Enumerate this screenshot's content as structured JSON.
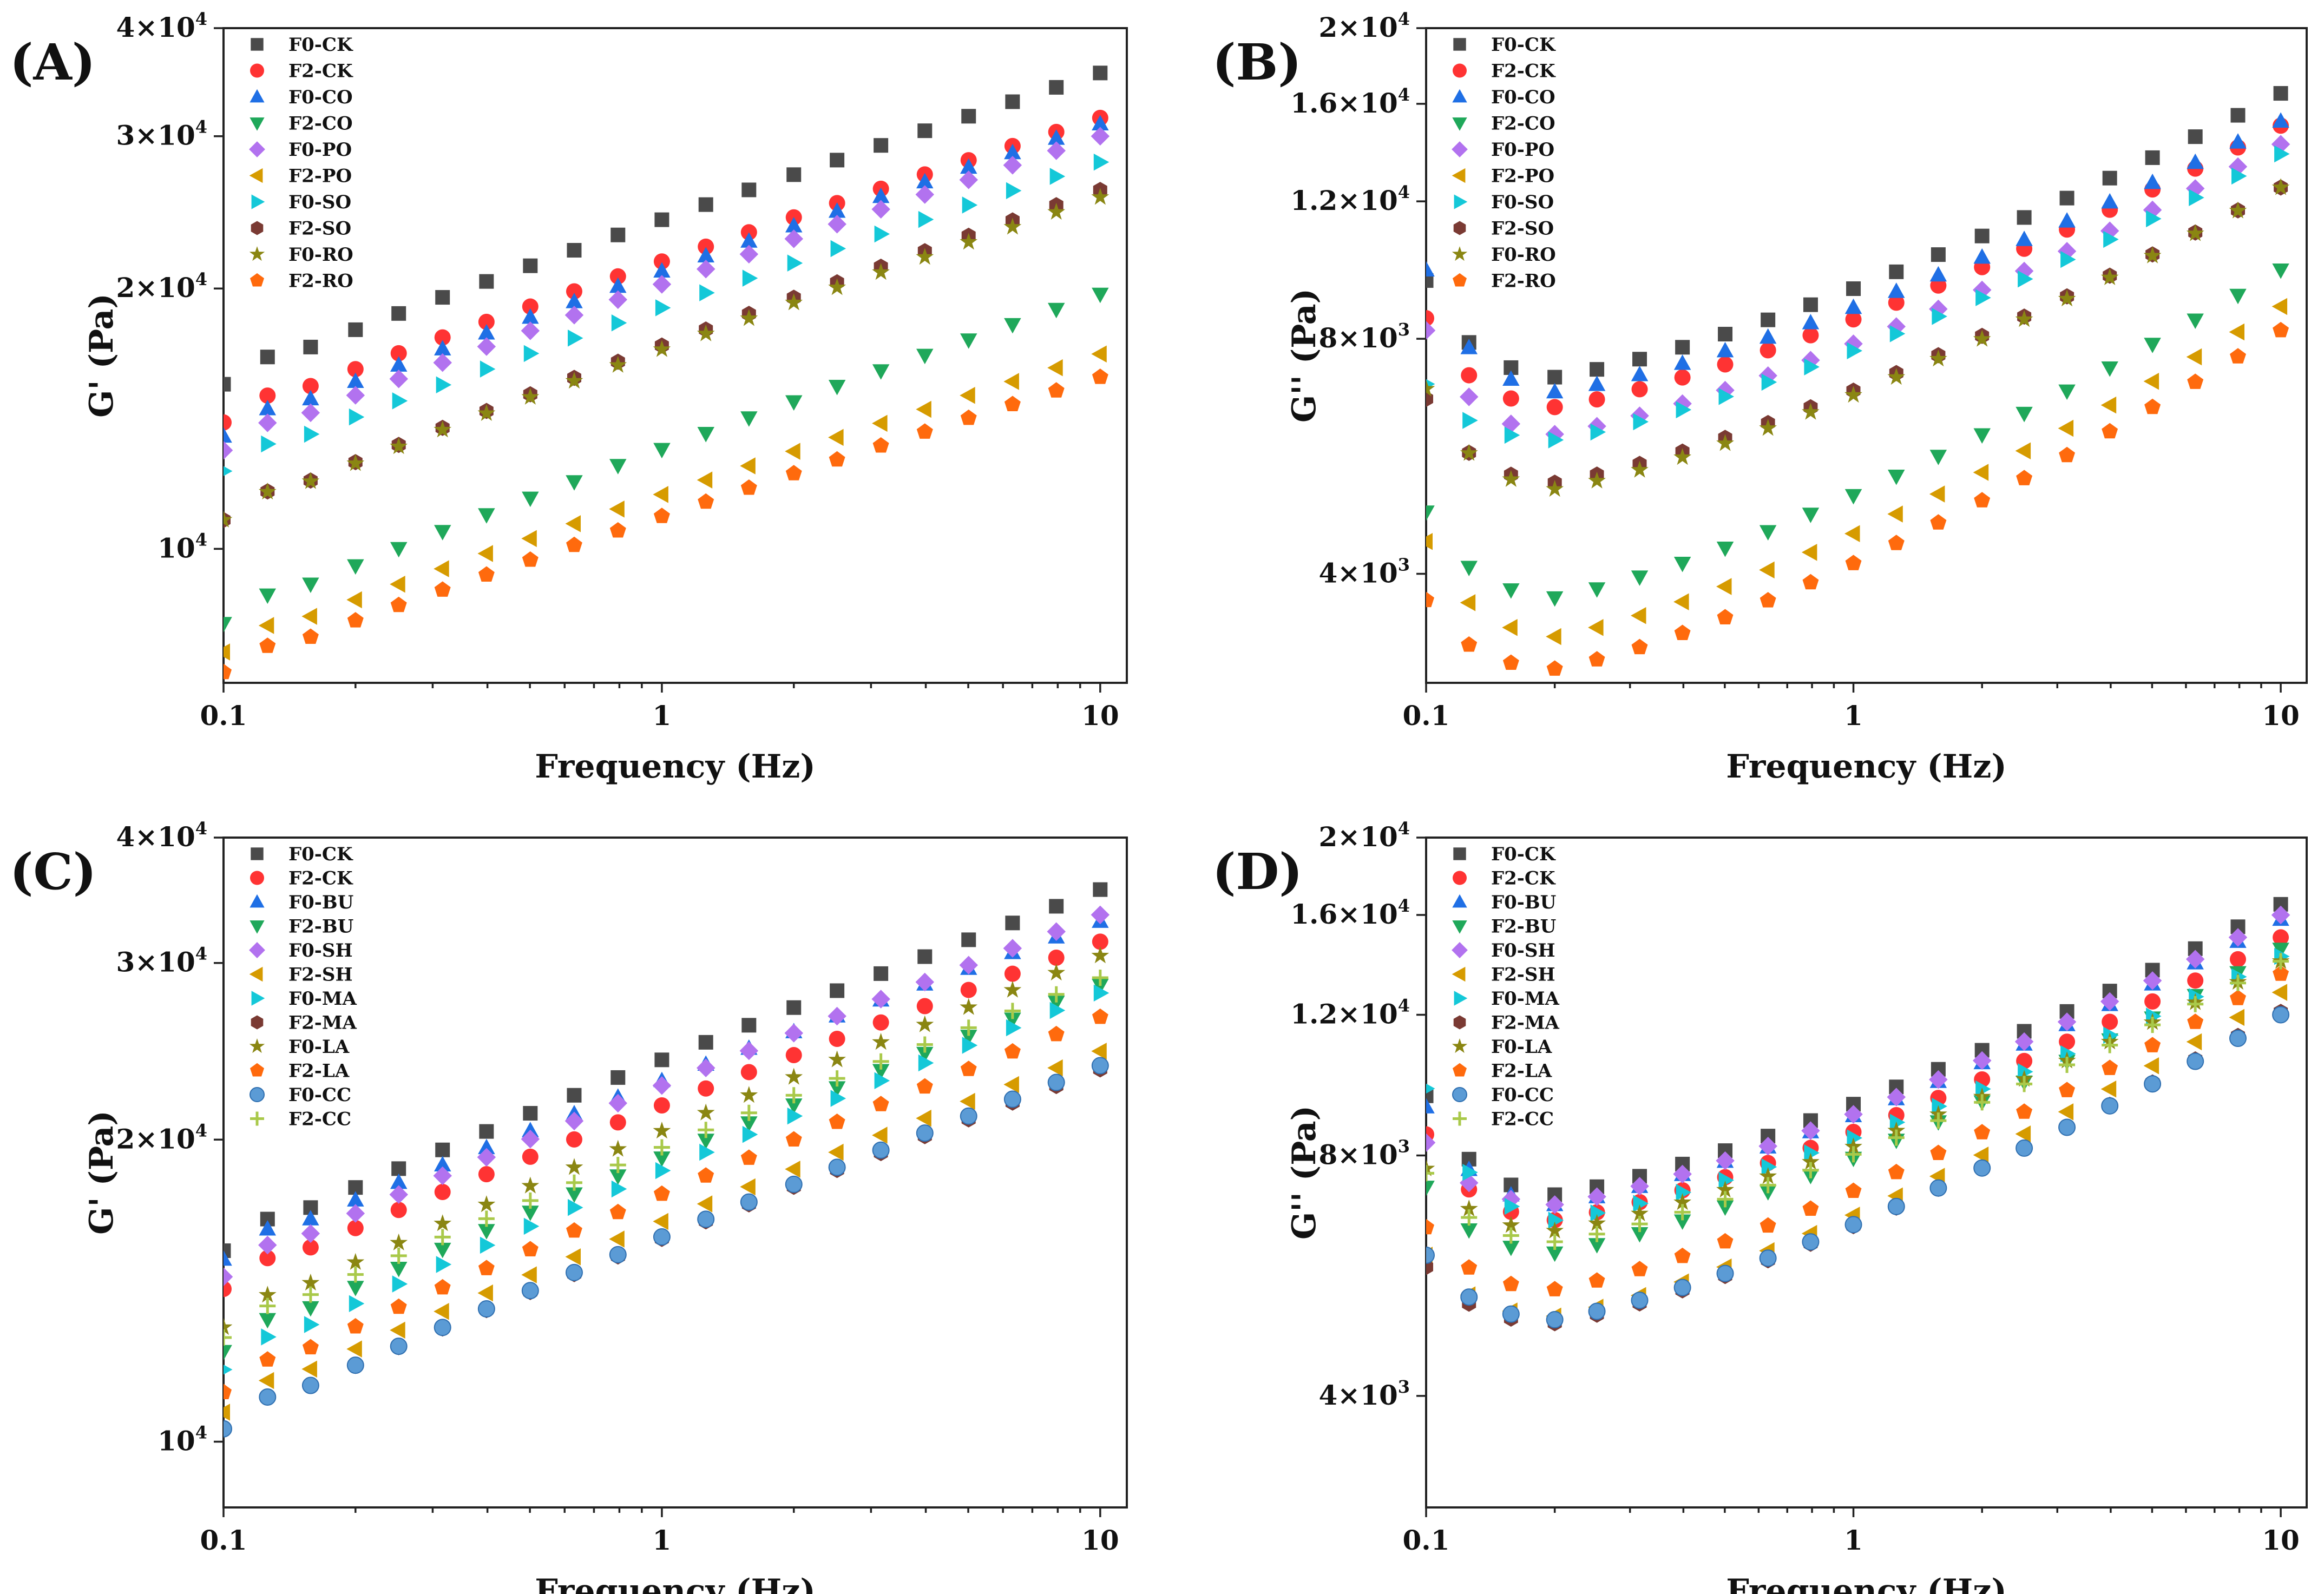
{
  "chart_data": [
    {
      "type": "scatter",
      "panel_label": "(A)",
      "xlabel": "Frequency (Hz)",
      "ylabel": "G' (Pa)",
      "xscale": "log",
      "yscale": "log",
      "xlim": [
        0.1,
        11.5
      ],
      "ylim": [
        7000,
        40000
      ],
      "x_ticks": [
        {
          "value": 0.1,
          "label": "0.1"
        },
        {
          "value": 1,
          "label": "1"
        },
        {
          "value": 10,
          "label": "10"
        }
      ],
      "y_ticks": [
        {
          "value": 10000,
          "base": "10",
          "exp": "4"
        },
        {
          "value": 20000,
          "base": "2×10",
          "exp": "4"
        },
        {
          "value": 30000,
          "base": "3×10",
          "exp": "4"
        },
        {
          "value": 40000,
          "base": "4×10",
          "exp": "4"
        }
      ],
      "legend_position": "top-left",
      "x": [
        0.1,
        0.126,
        0.158,
        0.2,
        0.251,
        0.316,
        0.398,
        0.501,
        0.631,
        0.794,
        1,
        1.26,
        1.58,
        2,
        2.51,
        3.16,
        3.98,
        5.01,
        6.31,
        7.94,
        10
      ],
      "series": [
        {
          "name": "F0-CK",
          "color": "#4a4a4a",
          "marker": "square",
          "start": 15500,
          "end": 35500
        },
        {
          "name": "F2-CK",
          "color": "#ff3333",
          "marker": "circle",
          "start": 14000,
          "end": 31500
        },
        {
          "name": "F0-CO",
          "color": "#1f6fe5",
          "marker": "triangle-up",
          "start": 13500,
          "end": 31000
        },
        {
          "name": "F2-CO",
          "color": "#1fa85a",
          "marker": "triangle-down",
          "start": 8200,
          "end": 19700
        },
        {
          "name": "F0-PO",
          "color": "#b272ef",
          "marker": "diamond",
          "start": 13000,
          "end": 30000
        },
        {
          "name": "F2-PO",
          "color": "#d69b00",
          "marker": "triangle-left",
          "start": 7600,
          "end": 16800
        },
        {
          "name": "F0-SO",
          "color": "#14c8d8",
          "marker": "triangle-right",
          "start": 12300,
          "end": 28000
        },
        {
          "name": "F2-SO",
          "color": "#7a3a33",
          "marker": "hexagon",
          "start": 10800,
          "end": 26000
        },
        {
          "name": "F0-RO",
          "color": "#8a8612",
          "marker": "star",
          "start": 10800,
          "end": 25500
        },
        {
          "name": "F2-RO",
          "color": "#ff6a0d",
          "marker": "pentagon",
          "start": 7200,
          "end": 15800
        }
      ]
    },
    {
      "type": "scatter",
      "panel_label": "(B)",
      "xlabel": "Frequency (Hz)",
      "ylabel": "G'' (Pa)",
      "xscale": "log",
      "yscale": "log",
      "xlim": [
        0.1,
        11.5
      ],
      "ylim": [
        2900,
        20000
      ],
      "x_ticks": [
        {
          "value": 0.1,
          "label": "0.1"
        },
        {
          "value": 1,
          "label": "1"
        },
        {
          "value": 10,
          "label": "10"
        }
      ],
      "y_ticks": [
        {
          "value": 4000,
          "base": "4×10",
          "exp": "3"
        },
        {
          "value": 8000,
          "base": "8×10",
          "exp": "3"
        },
        {
          "value": 12000,
          "base": "1.2×10",
          "exp": "4"
        },
        {
          "value": 16000,
          "base": "1.6×10",
          "exp": "4"
        },
        {
          "value": 20000,
          "base": "2×10",
          "exp": "4"
        }
      ],
      "legend_position": "top-left",
      "x": [
        0.1,
        0.126,
        0.158,
        0.2,
        0.251,
        0.316,
        0.398,
        0.501,
        0.631,
        0.794,
        1,
        1.26,
        1.58,
        2,
        2.51,
        3.16,
        3.98,
        5.01,
        6.31,
        7.94,
        10
      ],
      "series": [
        {
          "name": "F0-CK",
          "color": "#4a4a4a",
          "marker": "square",
          "start": 9500,
          "v02": 7100,
          "end": 16500
        },
        {
          "name": "F2-CK",
          "color": "#ff3333",
          "marker": "circle",
          "start": 8500,
          "v02": 6500,
          "end": 15000
        },
        {
          "name": "F0-CO",
          "color": "#1f6fe5",
          "marker": "triangle-up",
          "start": 9800,
          "v02": 6800,
          "end": 15200
        },
        {
          "name": "F2-CO",
          "color": "#1fa85a",
          "marker": "triangle-down",
          "start": 4800,
          "v02": 3700,
          "end": 9800
        },
        {
          "name": "F0-PO",
          "color": "#b272ef",
          "marker": "diamond",
          "start": 8200,
          "v02": 6000,
          "end": 14200
        },
        {
          "name": "F2-PO",
          "color": "#d69b00",
          "marker": "triangle-left",
          "start": 4400,
          "v02": 3300,
          "end": 8800
        },
        {
          "name": "F0-SO",
          "color": "#14c8d8",
          "marker": "triangle-right",
          "start": 7000,
          "v02": 5900,
          "end": 13800
        },
        {
          "name": "F2-SO",
          "color": "#7a3a33",
          "marker": "hexagon",
          "start": 6700,
          "v02": 5200,
          "end": 12500
        },
        {
          "name": "F0-RO",
          "color": "#8a8612",
          "marker": "star",
          "start": 6900,
          "v02": 5100,
          "end": 12500
        },
        {
          "name": "F2-RO",
          "color": "#ff6a0d",
          "marker": "pentagon",
          "start": 3700,
          "v02": 3000,
          "end": 8200
        }
      ]
    },
    {
      "type": "scatter",
      "panel_label": "(C)",
      "xlabel": "Frequency (Hz)",
      "ylabel": "G' (Pa)",
      "xscale": "log",
      "yscale": "log",
      "xlim": [
        0.1,
        11.5
      ],
      "ylim": [
        8600,
        40000
      ],
      "x_ticks": [
        {
          "value": 0.1,
          "label": "0.1"
        },
        {
          "value": 1,
          "label": "1"
        },
        {
          "value": 10,
          "label": "10"
        }
      ],
      "y_ticks": [
        {
          "value": 10000,
          "base": "10",
          "exp": "4"
        },
        {
          "value": 20000,
          "base": "2×10",
          "exp": "4"
        },
        {
          "value": 30000,
          "base": "3×10",
          "exp": "4"
        },
        {
          "value": 40000,
          "base": "4×10",
          "exp": "4"
        }
      ],
      "legend_position": "top-left",
      "x": [
        0.1,
        0.126,
        0.158,
        0.2,
        0.251,
        0.316,
        0.398,
        0.501,
        0.631,
        0.794,
        1,
        1.26,
        1.58,
        2,
        2.51,
        3.16,
        3.98,
        5.01,
        6.31,
        7.94,
        10
      ],
      "series": [
        {
          "name": "F0-CK",
          "color": "#4a4a4a",
          "marker": "square",
          "start": 15500,
          "end": 35500
        },
        {
          "name": "F2-CK",
          "color": "#ff3333",
          "marker": "circle",
          "start": 14200,
          "end": 31500
        },
        {
          "name": "F0-BU",
          "color": "#1f6fe5",
          "marker": "triangle-up",
          "start": 15200,
          "end": 33000
        },
        {
          "name": "F2-BU",
          "color": "#1fa85a",
          "marker": "triangle-down",
          "start": 12300,
          "end": 28500
        },
        {
          "name": "F0-SH",
          "color": "#b272ef",
          "marker": "diamond",
          "start": 14600,
          "end": 33500
        },
        {
          "name": "F2-SH",
          "color": "#d69b00",
          "marker": "triangle-left",
          "start": 10700,
          "end": 24500
        },
        {
          "name": "F0-MA",
          "color": "#14c8d8",
          "marker": "triangle-right",
          "start": 11800,
          "end": 28000
        },
        {
          "name": "F2-MA",
          "color": "#7a3a33",
          "marker": "hexagon",
          "start": 10300,
          "end": 23500
        },
        {
          "name": "F0-LA",
          "color": "#8a8612",
          "marker": "star",
          "start": 13000,
          "end": 30500
        },
        {
          "name": "F2-LA",
          "color": "#ff6a0d",
          "marker": "pentagon",
          "start": 11200,
          "end": 26500
        },
        {
          "name": "F0-CC",
          "color": "#5b9bd5",
          "marker": "sphere",
          "start": 10300,
          "end": 23700
        },
        {
          "name": "F2-CC",
          "color": "#a9c94a",
          "marker": "plus",
          "start": 12700,
          "end": 29000
        }
      ]
    },
    {
      "type": "scatter",
      "panel_label": "(D)",
      "xlabel": "Frequency (Hz)",
      "ylabel": "G'' (Pa)",
      "xscale": "log",
      "yscale": "log",
      "xlim": [
        0.1,
        11.5
      ],
      "ylim": [
        2900,
        20000
      ],
      "x_ticks": [
        {
          "value": 0.1,
          "label": "0.1"
        },
        {
          "value": 1,
          "label": "1"
        },
        {
          "value": 10,
          "label": "10"
        }
      ],
      "y_ticks": [
        {
          "value": 4000,
          "base": "4×10",
          "exp": "3"
        },
        {
          "value": 8000,
          "base": "8×10",
          "exp": "3"
        },
        {
          "value": 12000,
          "base": "1.2×10",
          "exp": "4"
        },
        {
          "value": 16000,
          "base": "1.6×10",
          "exp": "4"
        },
        {
          "value": 20000,
          "base": "2×10",
          "exp": "4"
        }
      ],
      "legend_position": "top-left",
      "x": [
        0.1,
        0.126,
        0.158,
        0.2,
        0.251,
        0.316,
        0.398,
        0.501,
        0.631,
        0.794,
        1,
        1.26,
        1.58,
        2,
        2.51,
        3.16,
        3.98,
        5.01,
        6.31,
        7.94,
        10
      ],
      "series": [
        {
          "name": "F0-CK",
          "color": "#4a4a4a",
          "marker": "square",
          "start": 9500,
          "v02": 7100,
          "end": 16500
        },
        {
          "name": "F2-CK",
          "color": "#ff3333",
          "marker": "circle",
          "start": 8500,
          "v02": 6600,
          "end": 15000
        },
        {
          "name": "F0-BU",
          "color": "#1f6fe5",
          "marker": "triangle-up",
          "start": 9200,
          "v02": 6900,
          "end": 15800
        },
        {
          "name": "F2-BU",
          "color": "#1fa85a",
          "marker": "triangle-down",
          "start": 7300,
          "v02": 6000,
          "end": 14500
        },
        {
          "name": "F0-SH",
          "color": "#b272ef",
          "marker": "diamond",
          "start": 8300,
          "v02": 6900,
          "end": 16000
        },
        {
          "name": "F2-SH",
          "color": "#d69b00",
          "marker": "triangle-left",
          "start": 6000,
          "v02": 5000,
          "end": 12800
        },
        {
          "name": "F0-MA",
          "color": "#14c8d8",
          "marker": "triangle-right",
          "start": 9700,
          "v02": 6600,
          "end": 14200
        },
        {
          "name": "F2-MA",
          "color": "#7a3a33",
          "marker": "hexagon",
          "start": 5800,
          "v02": 4900,
          "end": 12100
        },
        {
          "name": "F0-LA",
          "color": "#8a8612",
          "marker": "star",
          "start": 7700,
          "v02": 6400,
          "end": 14000
        },
        {
          "name": "F2-LA",
          "color": "#ff6a0d",
          "marker": "pentagon",
          "start": 6500,
          "v02": 5400,
          "end": 13500
        },
        {
          "name": "F0-CC",
          "color": "#5b9bd5",
          "marker": "sphere",
          "start": 6000,
          "v02": 4950,
          "end": 12000
        },
        {
          "name": "F2-CC",
          "color": "#a9c94a",
          "marker": "plus",
          "start": 7600,
          "v02": 6200,
          "end": 14000
        }
      ]
    }
  ]
}
